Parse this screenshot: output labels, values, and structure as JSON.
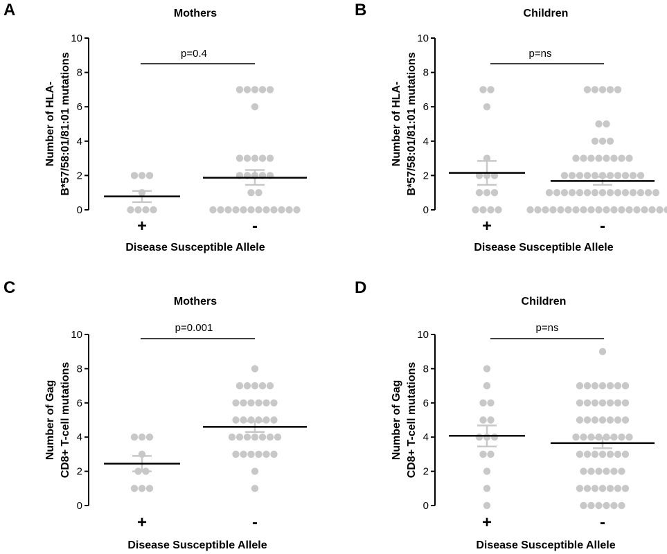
{
  "chart_data": [
    {
      "panel": "A",
      "type": "scatter",
      "title": "Mothers",
      "ylabel_lines": [
        "Number of HLA-",
        "B*57/58:01/81:01 mutations"
      ],
      "xlabel": "Disease Susceptible Allele",
      "categories": [
        "+",
        "-"
      ],
      "ylim": [
        0,
        10
      ],
      "yticks": [
        "0",
        "2",
        "4",
        "6",
        "8",
        "10"
      ],
      "pvalue": "p=0.4",
      "colors": {
        "points": "#c8c8c8",
        "error": "#c8c8c8",
        "mean": "#000000"
      },
      "groups": [
        {
          "category": "+",
          "values": [
            0,
            0,
            0,
            0,
            1,
            2,
            2,
            2
          ],
          "mean": 0.78,
          "sem_low": 0.45,
          "sem_high": 1.1
        },
        {
          "category": "-",
          "values": [
            0,
            0,
            0,
            0,
            0,
            0,
            0,
            0,
            0,
            0,
            0,
            0,
            1,
            1,
            2,
            2,
            2,
            2,
            2,
            3,
            3,
            3,
            3,
            3,
            6,
            7,
            7,
            7,
            7,
            7
          ],
          "mean": 1.87,
          "sem_low": 1.45,
          "sem_high": 2.32
        }
      ]
    },
    {
      "panel": "B",
      "type": "scatter",
      "title": "Children",
      "ylabel_lines": [
        "Number of HLA-",
        "B*57/58:01/81:01 mutations"
      ],
      "xlabel": "Disease Susceptible Allele",
      "categories": [
        "+",
        "-"
      ],
      "ylim": [
        0,
        10
      ],
      "yticks": [
        "0",
        "2",
        "4",
        "6",
        "8",
        "10"
      ],
      "pvalue": "p=ns",
      "colors": {
        "points": "#c8c8c8",
        "error": "#c8c8c8",
        "mean": "#000000"
      },
      "groups": [
        {
          "category": "+",
          "values": [
            0,
            0,
            0,
            0,
            1,
            1,
            1,
            2,
            2,
            2,
            3,
            6,
            7,
            7
          ],
          "mean": 2.15,
          "sem_low": 1.45,
          "sem_high": 2.85
        },
        {
          "category": "-",
          "values": [
            0,
            0,
            0,
            0,
            0,
            0,
            0,
            0,
            0,
            0,
            0,
            0,
            0,
            0,
            0,
            0,
            0,
            0,
            0,
            0,
            1,
            1,
            1,
            1,
            1,
            1,
            1,
            1,
            1,
            1,
            1,
            1,
            1,
            1,
            1,
            2,
            2,
            2,
            2,
            2,
            2,
            2,
            2,
            2,
            2,
            2,
            3,
            3,
            3,
            3,
            3,
            3,
            3,
            3,
            4,
            4,
            4,
            5,
            5,
            7,
            7,
            7,
            7,
            7
          ],
          "mean": 1.68,
          "sem_low": 1.45,
          "sem_high": 1.92
        }
      ]
    },
    {
      "panel": "C",
      "type": "scatter",
      "title": "Mothers",
      "ylabel_lines": [
        "Number of Gag",
        "CD8+ T-cell mutations"
      ],
      "xlabel": "Disease Susceptible Allele",
      "categories": [
        "+",
        "-"
      ],
      "ylim": [
        0,
        10
      ],
      "yticks": [
        "0",
        "2",
        "4",
        "6",
        "8",
        "10"
      ],
      "pvalue": "p=0.001",
      "colors": {
        "points": "#c8c8c8",
        "error": "#c8c8c8",
        "mean": "#000000"
      },
      "groups": [
        {
          "category": "+",
          "values": [
            1,
            1,
            1,
            2,
            2,
            3,
            4,
            4,
            4
          ],
          "mean": 2.45,
          "sem_low": 2.0,
          "sem_high": 2.9
        },
        {
          "category": "-",
          "values": [
            1,
            2,
            3,
            3,
            3,
            3,
            3,
            3,
            4,
            4,
            4,
            4,
            4,
            4,
            4,
            5,
            5,
            5,
            5,
            5,
            5,
            6,
            6,
            6,
            6,
            6,
            6,
            7,
            7,
            7,
            7,
            7,
            8
          ],
          "mean": 4.6,
          "sem_low": 4.3,
          "sem_high": 4.92
        }
      ]
    },
    {
      "panel": "D",
      "type": "scatter",
      "title": "Children",
      "ylabel_lines": [
        "Number of Gag",
        "CD8+ T-cell mutations"
      ],
      "xlabel": "Disease Susceptible Allele",
      "categories": [
        "+",
        "-"
      ],
      "ylim": [
        0,
        10
      ],
      "yticks": [
        "0",
        "2",
        "4",
        "6",
        "8",
        "10"
      ],
      "pvalue": "p=ns",
      "colors": {
        "points": "#c8c8c8",
        "error": "#c8c8c8",
        "mean": "#000000"
      },
      "groups": [
        {
          "category": "+",
          "values": [
            0,
            1,
            2,
            3,
            3,
            4,
            4,
            4,
            5,
            5,
            6,
            6,
            7,
            8
          ],
          "mean": 4.08,
          "sem_low": 3.45,
          "sem_high": 4.68
        },
        {
          "category": "-",
          "values": [
            0,
            0,
            0,
            0,
            0,
            0,
            1,
            1,
            1,
            1,
            1,
            1,
            1,
            2,
            2,
            2,
            2,
            2,
            2,
            3,
            3,
            3,
            3,
            3,
            3,
            3,
            4,
            4,
            4,
            4,
            4,
            4,
            4,
            4,
            5,
            5,
            5,
            5,
            5,
            5,
            5,
            6,
            6,
            6,
            6,
            6,
            6,
            6,
            7,
            7,
            7,
            7,
            7,
            7,
            7,
            9
          ],
          "mean": 3.65,
          "sem_low": 3.35,
          "sem_high": 3.95
        }
      ]
    }
  ]
}
